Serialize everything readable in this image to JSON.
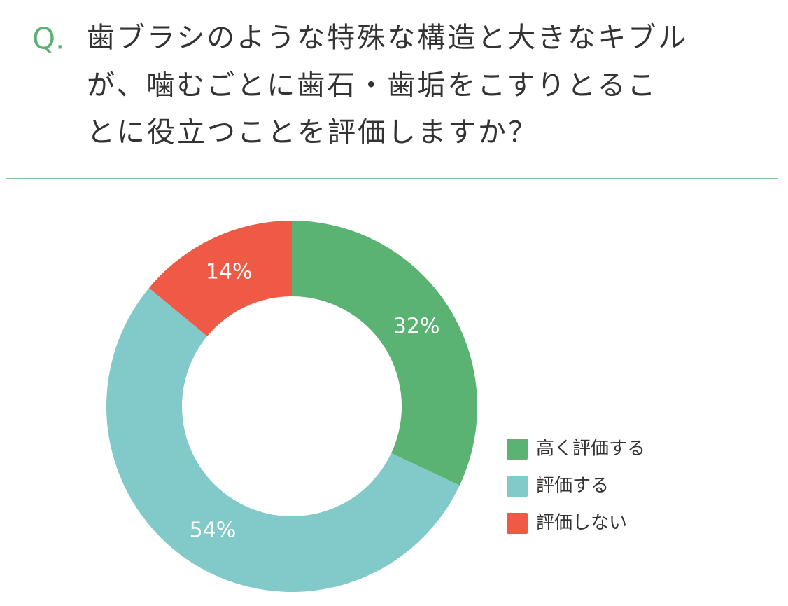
{
  "chart_data": {
    "type": "donut",
    "question_mark": "Q.",
    "title": [
      "歯ブラシのような特殊な構造と大きなキブル",
      "が、噛むごとに歯石・歯垢をこすりとるこ",
      "とに役立つことを評価しますか？"
    ],
    "categories": [
      "高く評価する",
      "評価する",
      "評価しない"
    ],
    "values": [
      32,
      54,
      14
    ],
    "value_labels": [
      "32%",
      "54%",
      "14%"
    ],
    "colors": [
      "#5bb373",
      "#82c9c9",
      "#ee5a45"
    ],
    "legend": "right"
  }
}
